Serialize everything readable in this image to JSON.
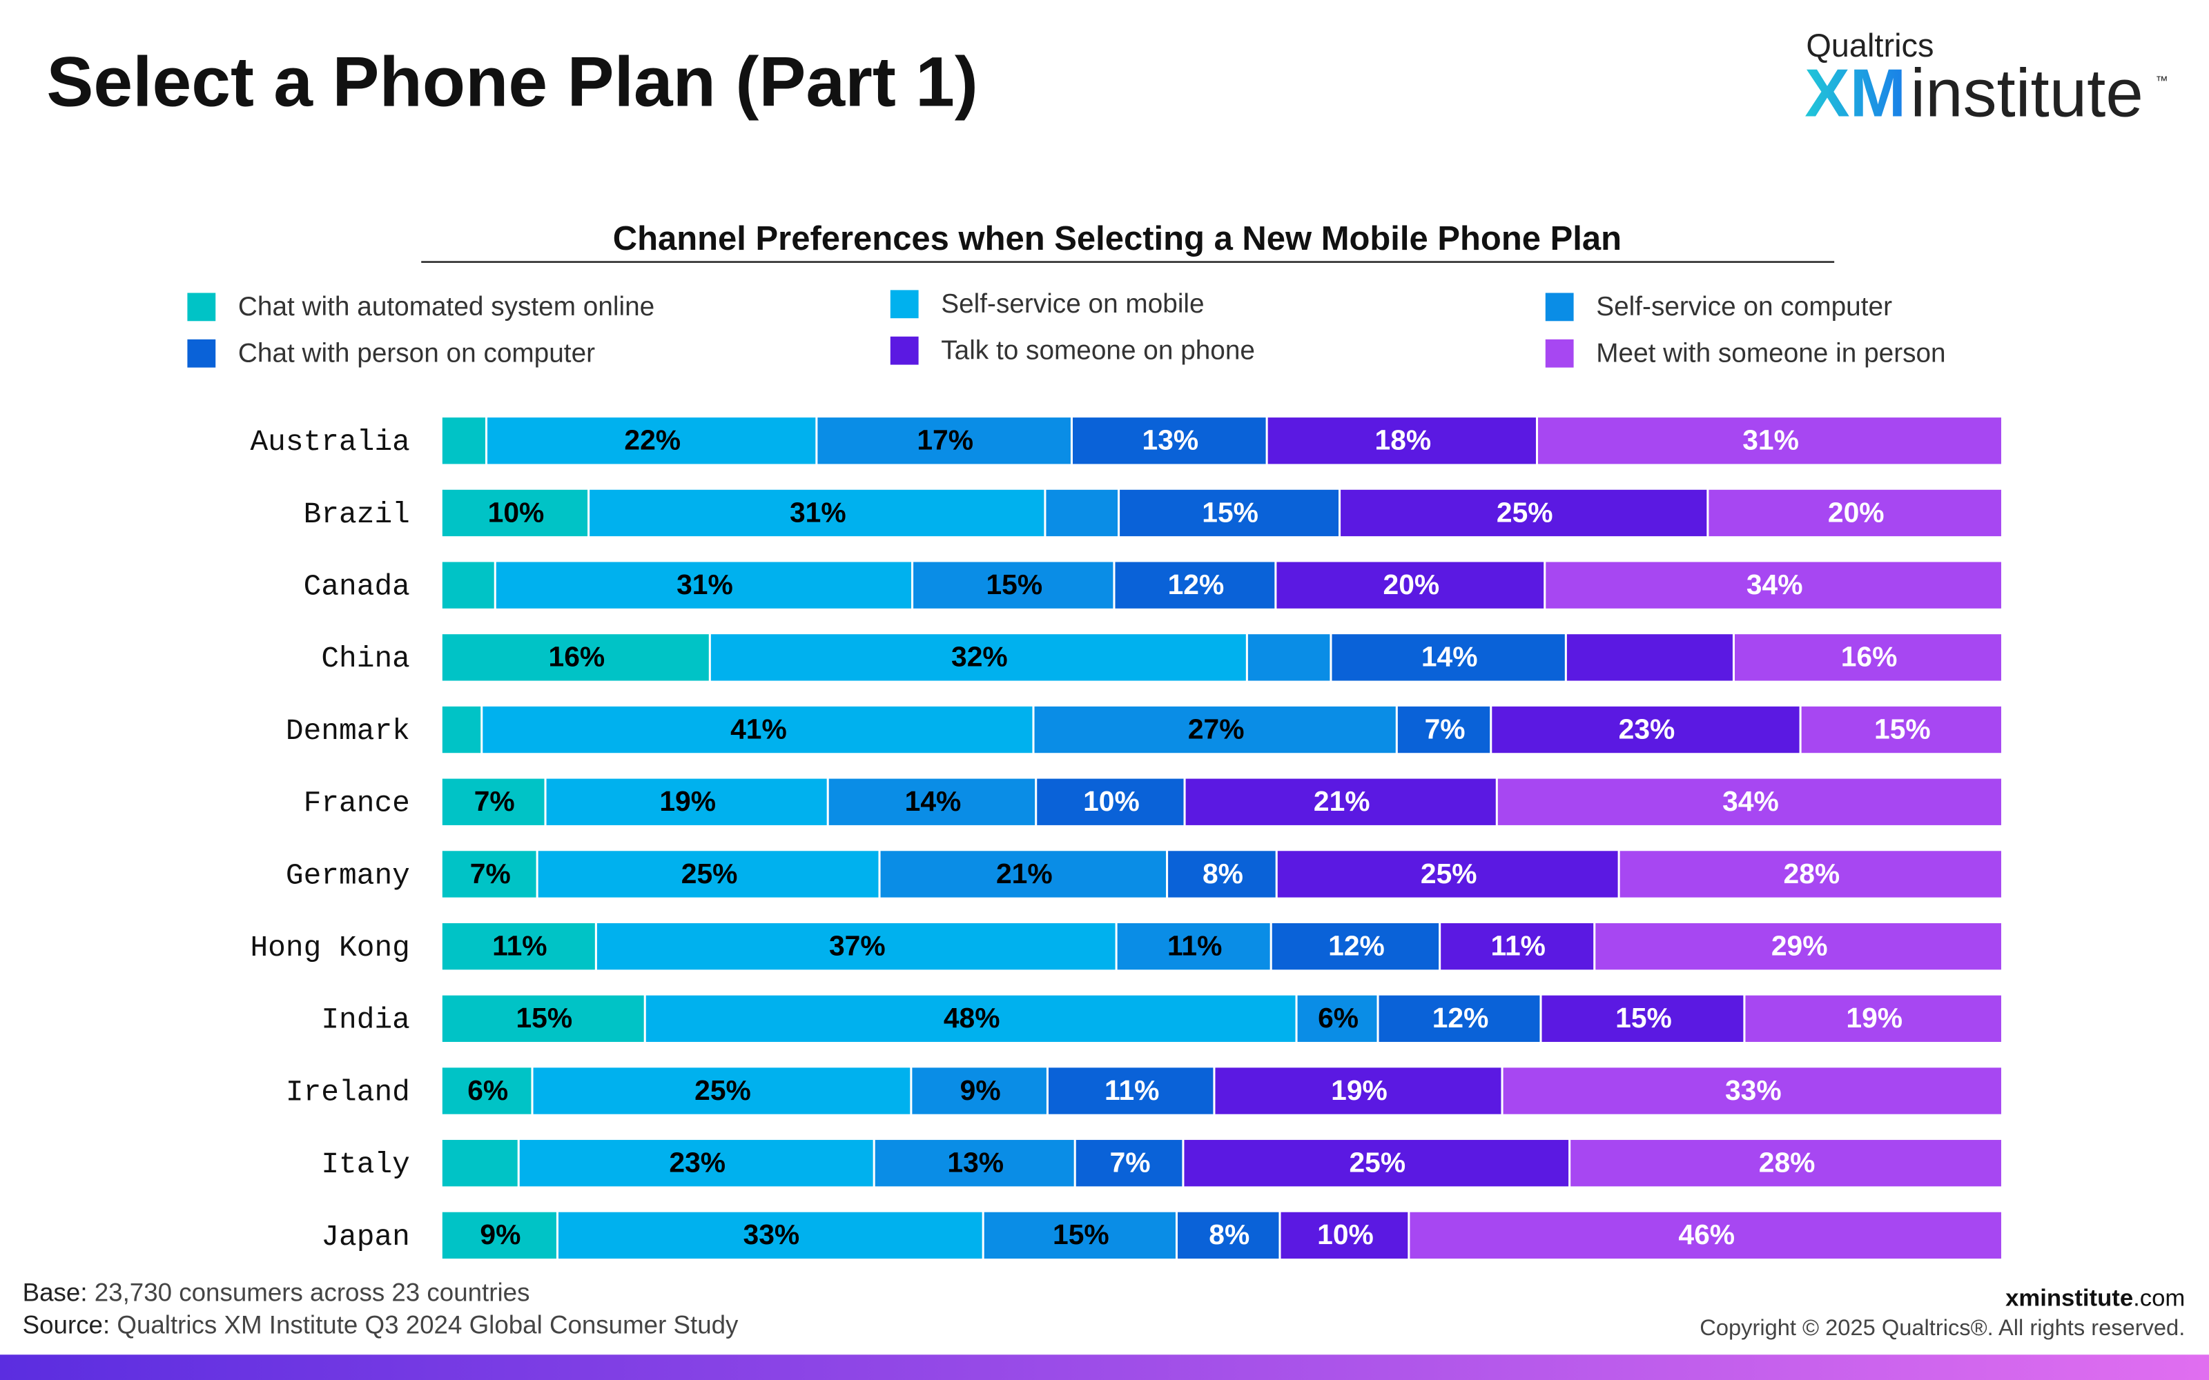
{
  "chart_data": {
    "type": "stacked-bar-horizontal",
    "stack": "percent",
    "page_title": "Select a Phone Plan (Part 1)",
    "logo": {
      "brand": "Qualtrics",
      "xm": "XM",
      "name": "institute",
      "tm": "™"
    },
    "title": "Channel Preferences when Selecting a New Mobile Phone Plan",
    "categories": [
      "Australia",
      "Brazil",
      "Canada",
      "China",
      "Denmark",
      "France",
      "Germany",
      "Hong Kong",
      "India",
      "Ireland",
      "Italy",
      "Japan"
    ],
    "series": [
      {
        "name": "Chat with automated system online",
        "color": "#00c3c6",
        "label_color": "#000000",
        "values": [
          3,
          10,
          4,
          16,
          3,
          7,
          7,
          11,
          15,
          6,
          5,
          9
        ],
        "value_labels": [
          null,
          "10%",
          null,
          "16%",
          null,
          "7%",
          "7%",
          "11%",
          "15%",
          "6%",
          null,
          "9%"
        ]
      },
      {
        "name": "Self-service on mobile",
        "color": "#00b1ee",
        "label_color": "#000000",
        "values": [
          22,
          31,
          31,
          32,
          41,
          19,
          25,
          37,
          48,
          25,
          23,
          33
        ],
        "value_labels": [
          "22%",
          "31%",
          "31%",
          "32%",
          "41%",
          "19%",
          "25%",
          "37%",
          "48%",
          "25%",
          "23%",
          "33%"
        ]
      },
      {
        "name": "Self-service on computer",
        "color": "#0a8de6",
        "label_color": "#000000",
        "values": [
          17,
          5,
          15,
          5,
          27,
          14,
          21,
          11,
          6,
          9,
          13,
          15
        ],
        "value_labels": [
          "17%",
          null,
          "15%",
          null,
          "27%",
          "14%",
          "21%",
          "11%",
          "6%",
          "9%",
          "13%",
          "15%"
        ]
      },
      {
        "name": "Chat with person on computer",
        "color": "#0a62d8",
        "label_color": "#ffffff",
        "values": [
          13,
          15,
          12,
          14,
          7,
          10,
          8,
          12,
          12,
          11,
          7,
          8
        ],
        "value_labels": [
          "13%",
          "15%",
          "12%",
          "14%",
          "7%",
          "10%",
          "8%",
          "12%",
          "12%",
          "11%",
          "7%",
          "8%"
        ]
      },
      {
        "name": "Talk to someone on phone",
        "color": "#5b19e2",
        "label_color": "#ffffff",
        "values": [
          18,
          25,
          20,
          10,
          23,
          21,
          25,
          11,
          15,
          19,
          25,
          10
        ],
        "value_labels": [
          "18%",
          "25%",
          "20%",
          null,
          "23%",
          "21%",
          "25%",
          "11%",
          "15%",
          "19%",
          "25%",
          "10%"
        ]
      },
      {
        "name": "Meet with someone in person",
        "color": "#a747f2",
        "label_color": "#ffffff",
        "values": [
          31,
          20,
          34,
          16,
          15,
          34,
          28,
          29,
          19,
          33,
          28,
          46
        ],
        "value_labels": [
          "31%",
          "20%",
          "34%",
          "16%",
          "15%",
          "34%",
          "28%",
          "29%",
          "19%",
          "33%",
          "28%",
          "46%"
        ]
      }
    ],
    "footer": {
      "base_label": "Base:",
      "base": "23,730 consumers across 23 countries",
      "source_label": "Source:",
      "source": "Qualtrics XM Institute Q3 2024 Global Consumer Study",
      "site_bold": "xminstitute",
      "site_rest": ".com",
      "copyright": "Copyright © 2025 Qualtrics®. All rights reserved."
    }
  }
}
